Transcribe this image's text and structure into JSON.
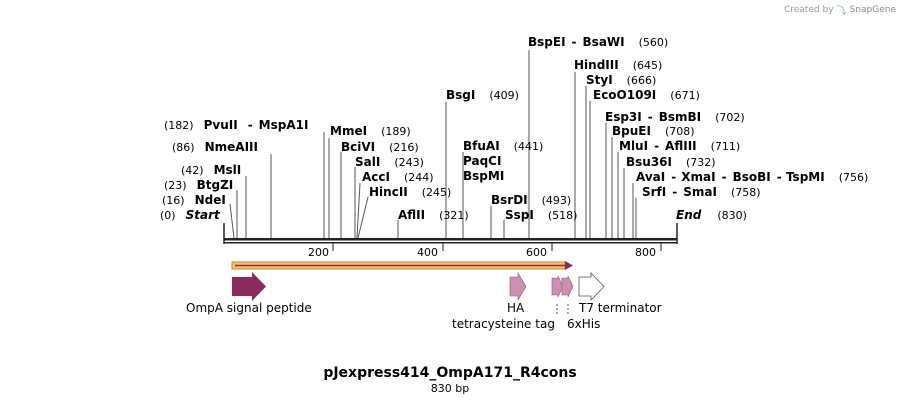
{
  "credit": {
    "prefix": "Created by",
    "brand": "SnapGene",
    "logo_icon": "snapgene-logo-icon"
  },
  "sequence": {
    "name": "pJexpress414_OmpA171_R4cons",
    "length_label": "830 bp",
    "length": 830
  },
  "ruler": {
    "ticks": [
      "200",
      "400",
      "600",
      "800"
    ]
  },
  "colors": {
    "feature_dark": "#8b2a5c",
    "feature_light": "#cc8fb0",
    "orf_fill": "#f2c464",
    "orf_edge": "#c9862a",
    "backbone": "#222222"
  },
  "sites": [
    {
      "names": [
        "BspEI",
        "BsaWI"
      ],
      "pos": "(560)"
    },
    {
      "names": [
        "HindIII"
      ],
      "pos": "(645)"
    },
    {
      "names": [
        "StyI"
      ],
      "pos": "(666)"
    },
    {
      "names": [
        "EcoO109I"
      ],
      "pos": "(671)"
    },
    {
      "names": [
        "BsgI"
      ],
      "pos": "(409)"
    },
    {
      "names": [
        "Esp3I",
        "BsmBI"
      ],
      "pos": "(702)"
    },
    {
      "names": [
        "BpuEI"
      ],
      "pos": "(708)"
    },
    {
      "names": [
        "PvuII",
        "MspA1I"
      ],
      "pos": "(182)"
    },
    {
      "names": [
        "MmeI"
      ],
      "pos": "(189)"
    },
    {
      "names": [
        "BfuAI"
      ],
      "pos": "(441)"
    },
    {
      "names": [
        "MluI",
        "AflIII"
      ],
      "pos": "(711)"
    },
    {
      "names": [
        "NmeAIII"
      ],
      "pos": "(86)"
    },
    {
      "names": [
        "BciVI"
      ],
      "pos": "(216)"
    },
    {
      "names": [
        "PaqCI"
      ],
      "pos": ""
    },
    {
      "names": [
        "Bsu36I"
      ],
      "pos": "(732)"
    },
    {
      "names": [
        "SalI"
      ],
      "pos": "(243)"
    },
    {
      "names": [
        "BspMI"
      ],
      "pos": ""
    },
    {
      "names": [
        "MslI"
      ],
      "pos": "(42)"
    },
    {
      "names": [
        "AccI"
      ],
      "pos": "(244)"
    },
    {
      "names": [
        "AvaI",
        "XmaI",
        "BsoBI",
        "TspMI"
      ],
      "pos": "(756)"
    },
    {
      "names": [
        "BtgZI"
      ],
      "pos": "(23)"
    },
    {
      "names": [
        "HincII"
      ],
      "pos": "(245)"
    },
    {
      "names": [
        "SrfI",
        "SmaI"
      ],
      "pos": "(758)"
    },
    {
      "names": [
        "NdeI"
      ],
      "pos": "(16)"
    },
    {
      "names": [
        "BsrDI"
      ],
      "pos": "(493)"
    },
    {
      "names": [
        "Start"
      ],
      "pos": "(0)"
    },
    {
      "names": [
        "AflII"
      ],
      "pos": "(321)"
    },
    {
      "names": [
        "SspI"
      ],
      "pos": "(518)"
    },
    {
      "names": [
        "End"
      ],
      "pos": "(830)"
    }
  ],
  "features": [
    {
      "name": "OmpA signal peptide"
    },
    {
      "name": "HA"
    },
    {
      "name": "tetracysteine tag"
    },
    {
      "name": "6xHis"
    },
    {
      "name": "T7 terminator"
    }
  ]
}
